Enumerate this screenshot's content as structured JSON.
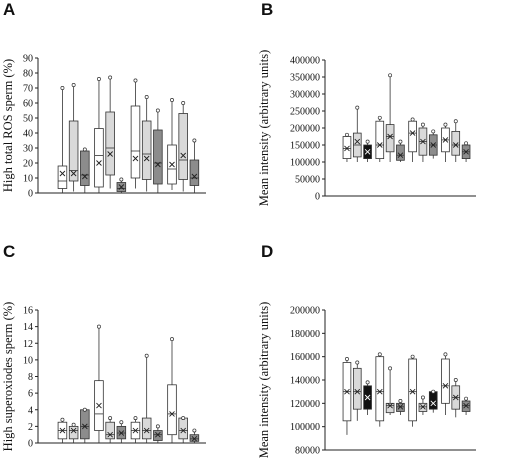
{
  "panels": {
    "A": {
      "letter": "A",
      "ylabel": "High total ROS sperm (%)",
      "ticks": [
        "0",
        "10",
        "20",
        "30",
        "40",
        "50",
        "60",
        "70",
        "80",
        "90"
      ]
    },
    "B": {
      "letter": "B",
      "ylabel": "Mean intensity (arbitrary units)",
      "ticks": [
        "0",
        "50000",
        "100000",
        "150000",
        "200000",
        "250000",
        "300000",
        "350000",
        "400000"
      ]
    },
    "C": {
      "letter": "C",
      "ylabel": "High superoxiodes sperm (%)",
      "ticks": [
        "0",
        "2",
        "4",
        "6",
        "8",
        "10",
        "12",
        "14",
        "16"
      ]
    },
    "D": {
      "letter": "D",
      "ylabel": "Mean intensity (arbitrary units)",
      "ticks": [
        "80000",
        "100000",
        "120000",
        "140000",
        "160000",
        "180000",
        "200000"
      ]
    }
  },
  "chart_data": [
    {
      "type": "box",
      "panel": "A",
      "ylabel": "High total ROS sperm (%)",
      "ylim": [
        0,
        90
      ],
      "groups": 4,
      "series_fills": [
        "white",
        "lightgray",
        "darkgray",
        "white-dotted"
      ],
      "boxes": [
        {
          "group": 1,
          "fill": "white",
          "min": 0,
          "q1": 3,
          "median": 8,
          "q3": 18,
          "max": 70,
          "mean": 13
        },
        {
          "group": 1,
          "fill": "lightgray",
          "min": 1,
          "q1": 8,
          "median": 15,
          "q3": 48,
          "max": 72,
          "mean": 13
        },
        {
          "group": 1,
          "fill": "darkgray",
          "min": 0,
          "q1": 5,
          "median": 12,
          "q3": 28,
          "max": 29,
          "mean": 11
        },
        {
          "group": 2,
          "fill": "white",
          "min": 0,
          "q1": 4,
          "median": 25,
          "q3": 43,
          "max": 76,
          "mean": 20
        },
        {
          "group": 2,
          "fill": "lightgray",
          "min": 3,
          "q1": 12,
          "median": 30,
          "q3": 54,
          "max": 77,
          "mean": 26
        },
        {
          "group": 2,
          "fill": "darkgray",
          "min": 0,
          "q1": 1,
          "median": 3,
          "q3": 7,
          "max": 9,
          "mean": 4
        },
        {
          "group": 3,
          "fill": "white",
          "min": 3,
          "q1": 10,
          "median": 28,
          "q3": 58,
          "max": 75,
          "mean": 23
        },
        {
          "group": 3,
          "fill": "lightgray",
          "min": 1,
          "q1": 9,
          "median": 26,
          "q3": 48,
          "max": 64,
          "mean": 23
        },
        {
          "group": 3,
          "fill": "darkgray",
          "min": 0,
          "q1": 6,
          "median": 20,
          "q3": 42,
          "max": 55,
          "mean": 19
        },
        {
          "group": 4,
          "fill": "white",
          "min": 2,
          "q1": 6,
          "median": 16,
          "q3": 32,
          "max": 62,
          "mean": 19
        },
        {
          "group": 4,
          "fill": "lightgray",
          "min": 1,
          "q1": 9,
          "median": 22,
          "q3": 53,
          "max": 60,
          "mean": 25
        },
        {
          "group": 4,
          "fill": "darkgray",
          "min": 0,
          "q1": 5,
          "median": 10,
          "q3": 22,
          "max": 35,
          "mean": 11
        }
      ]
    },
    {
      "type": "box",
      "panel": "B",
      "ylabel": "Mean intensity (arbitrary units)",
      "ylim": [
        0,
        400000
      ],
      "groups": 4,
      "boxes": [
        {
          "group": 1,
          "fill": "white",
          "min": 100000,
          "q1": 110000,
          "median": 140000,
          "q3": 175000,
          "max": 180000,
          "mean": 140000
        },
        {
          "group": 1,
          "fill": "lightgray",
          "min": 100000,
          "q1": 115000,
          "median": 150000,
          "q3": 185000,
          "max": 260000,
          "mean": 160000
        },
        {
          "group": 1,
          "fill": "black",
          "min": 100000,
          "q1": 110000,
          "median": 130000,
          "q3": 150000,
          "max": 160000,
          "mean": 130000
        },
        {
          "group": 2,
          "fill": "white",
          "min": 100000,
          "q1": 110000,
          "median": 150000,
          "q3": 220000,
          "max": 230000,
          "mean": 150000
        },
        {
          "group": 2,
          "fill": "lightgray",
          "min": 100000,
          "q1": 130000,
          "median": 175000,
          "q3": 210000,
          "max": 355000,
          "mean": 175000
        },
        {
          "group": 2,
          "fill": "darkgray",
          "min": 100000,
          "q1": 105000,
          "median": 120000,
          "q3": 150000,
          "max": 160000,
          "mean": 120000
        },
        {
          "group": 3,
          "fill": "white",
          "min": 100000,
          "q1": 130000,
          "median": 185000,
          "q3": 220000,
          "max": 225000,
          "mean": 185000
        },
        {
          "group": 3,
          "fill": "lightgray",
          "min": 100000,
          "q1": 120000,
          "median": 160000,
          "q3": 200000,
          "max": 210000,
          "mean": 160000
        },
        {
          "group": 3,
          "fill": "darkgray",
          "min": 110000,
          "q1": 120000,
          "median": 150000,
          "q3": 180000,
          "max": 190000,
          "mean": 150000
        },
        {
          "group": 4,
          "fill": "white",
          "min": 100000,
          "q1": 130000,
          "median": 165000,
          "q3": 200000,
          "max": 210000,
          "mean": 165000
        },
        {
          "group": 4,
          "fill": "lightgray",
          "min": 100000,
          "q1": 120000,
          "median": 150000,
          "q3": 190000,
          "max": 220000,
          "mean": 150000
        },
        {
          "group": 4,
          "fill": "darkgray",
          "min": 100000,
          "q1": 110000,
          "median": 130000,
          "q3": 150000,
          "max": 155000,
          "mean": 130000
        }
      ]
    },
    {
      "type": "box",
      "panel": "C",
      "ylabel": "High superoxiodes sperm (%)",
      "ylim": [
        0,
        16
      ],
      "groups": 4,
      "boxes": [
        {
          "group": 1,
          "fill": "white",
          "min": 0,
          "q1": 0.5,
          "median": 1.5,
          "q3": 2.5,
          "max": 2.8,
          "mean": 1.5
        },
        {
          "group": 1,
          "fill": "lightgray",
          "min": 0,
          "q1": 0.5,
          "median": 1.5,
          "q3": 2.0,
          "max": 2.2,
          "mean": 1.5
        },
        {
          "group": 1,
          "fill": "darkgray",
          "min": 0,
          "q1": 0.5,
          "median": 2.0,
          "q3": 4.0,
          "max": 4.0,
          "mean": 2.0
        },
        {
          "group": 2,
          "fill": "white",
          "min": 0,
          "q1": 1.5,
          "median": 3.5,
          "q3": 7.5,
          "max": 14,
          "mean": 4.5
        },
        {
          "group": 2,
          "fill": "lightgray",
          "min": 0,
          "q1": 0.5,
          "median": 1.0,
          "q3": 2.5,
          "max": 3.0,
          "mean": 1.0
        },
        {
          "group": 2,
          "fill": "darkgray",
          "min": 0,
          "q1": 0.5,
          "median": 1.2,
          "q3": 2.0,
          "max": 2.5,
          "mean": 1.2
        },
        {
          "group": 3,
          "fill": "white",
          "min": 0,
          "q1": 0.5,
          "median": 1.5,
          "q3": 2.5,
          "max": 3.0,
          "mean": 1.5
        },
        {
          "group": 3,
          "fill": "lightgray",
          "min": 0,
          "q1": 0.5,
          "median": 1.5,
          "q3": 3.0,
          "max": 10.5,
          "mean": 1.5
        },
        {
          "group": 3,
          "fill": "darkgray",
          "min": 0,
          "q1": 0.3,
          "median": 1.0,
          "q3": 1.5,
          "max": 2.0,
          "mean": 1.0
        },
        {
          "group": 4,
          "fill": "white",
          "min": 0,
          "q1": 1.0,
          "median": 3.5,
          "q3": 7.0,
          "max": 12.5,
          "mean": 3.5
        },
        {
          "group": 4,
          "fill": "lightgray",
          "min": 0,
          "q1": 0.5,
          "median": 1.5,
          "q3": 3.0,
          "max": 3.0,
          "mean": 1.5
        },
        {
          "group": 4,
          "fill": "darkgray",
          "min": 0,
          "q1": 0.2,
          "median": 0.5,
          "q3": 1.0,
          "max": 1.5,
          "mean": 0.5
        }
      ]
    },
    {
      "type": "box",
      "panel": "D",
      "ylabel": "Mean intensity (arbitrary units)",
      "ylim": [
        80000,
        200000
      ],
      "groups": 4,
      "boxes": [
        {
          "group": 1,
          "fill": "white",
          "min": 93000,
          "q1": 105000,
          "median": 130000,
          "q3": 155000,
          "max": 158000,
          "mean": 130000
        },
        {
          "group": 1,
          "fill": "lightgray",
          "min": 105000,
          "q1": 115000,
          "median": 130000,
          "q3": 150000,
          "max": 155000,
          "mean": 130000
        },
        {
          "group": 1,
          "fill": "black",
          "min": 110000,
          "q1": 115000,
          "median": 125000,
          "q3": 135000,
          "max": 138000,
          "mean": 125000
        },
        {
          "group": 2,
          "fill": "white",
          "min": 100000,
          "q1": 105000,
          "median": 130000,
          "q3": 160000,
          "max": 162000,
          "mean": 130000
        },
        {
          "group": 2,
          "fill": "lightgray",
          "min": 110000,
          "q1": 112000,
          "median": 118000,
          "q3": 120000,
          "max": 150000,
          "mean": 118000
        },
        {
          "group": 2,
          "fill": "darkgray",
          "min": 110000,
          "q1": 113000,
          "median": 117000,
          "q3": 120000,
          "max": 122000,
          "mean": 117000
        },
        {
          "group": 3,
          "fill": "white",
          "min": 100000,
          "q1": 105000,
          "median": 130000,
          "q3": 158000,
          "max": 160000,
          "mean": 130000
        },
        {
          "group": 3,
          "fill": "lightgray",
          "min": 110000,
          "q1": 113000,
          "median": 117000,
          "q3": 120000,
          "max": 125000,
          "mean": 117000
        },
        {
          "group": 3,
          "fill": "black",
          "min": 112000,
          "q1": 115000,
          "median": 120000,
          "q3": 130000,
          "max": 130000,
          "mean": 120000
        },
        {
          "group": 4,
          "fill": "white",
          "min": 110000,
          "q1": 120000,
          "median": 135000,
          "q3": 158000,
          "max": 162000,
          "mean": 135000
        },
        {
          "group": 4,
          "fill": "lightgray",
          "min": 108000,
          "q1": 115000,
          "median": 125000,
          "q3": 135000,
          "max": 140000,
          "mean": 125000
        },
        {
          "group": 4,
          "fill": "darkgray",
          "min": 110000,
          "q1": 113000,
          "median": 118000,
          "q3": 122000,
          "max": 124000,
          "mean": 118000
        }
      ]
    }
  ]
}
